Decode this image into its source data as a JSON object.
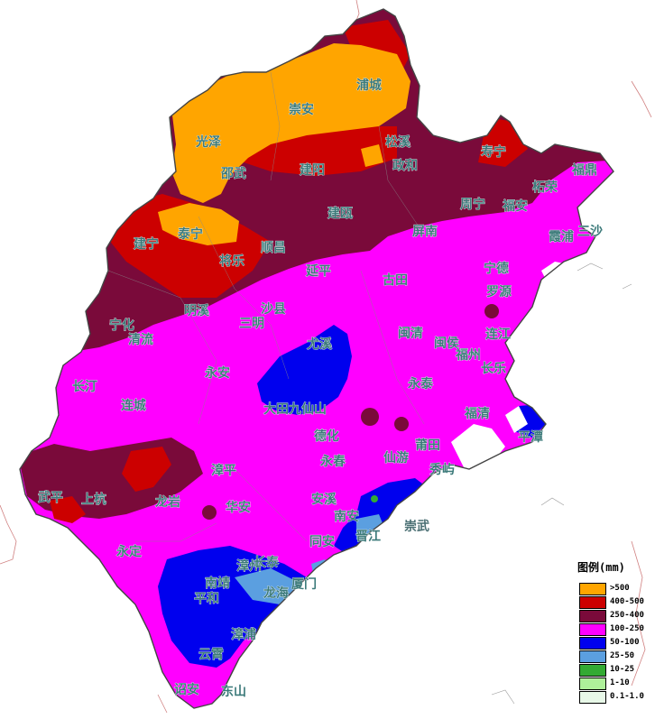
{
  "legend": {
    "title": "图例(mm)",
    "items": [
      {
        "label": ">500",
        "color": "#ffa500"
      },
      {
        "label": "400-500",
        "color": "#cc0000"
      },
      {
        "label": "250-400",
        "color": "#7a0a3a"
      },
      {
        "label": "100-250",
        "color": "#ff00ff"
      },
      {
        "label": "50-100",
        "color": "#0000ee"
      },
      {
        "label": "25-50",
        "color": "#5b9fe0"
      },
      {
        "label": "10-25",
        "color": "#33aa33"
      },
      {
        "label": "1-10",
        "color": "#aef09a"
      },
      {
        "label": "0.1-1.0",
        "color": "#e8f8e8"
      }
    ]
  },
  "places": [
    {
      "name": "浦城"
    },
    {
      "name": "崇安"
    },
    {
      "name": "光泽"
    },
    {
      "name": "松溪"
    },
    {
      "name": "邵武"
    },
    {
      "name": "建阳"
    },
    {
      "name": "政和"
    },
    {
      "name": "寿宁"
    },
    {
      "name": "福鼎"
    },
    {
      "name": "柘荣"
    },
    {
      "name": "建瓯"
    },
    {
      "name": "周宁"
    },
    {
      "name": "福安"
    },
    {
      "name": "泰宁"
    },
    {
      "name": "建宁"
    },
    {
      "name": "顺昌"
    },
    {
      "name": "将乐"
    },
    {
      "name": "屏南"
    },
    {
      "name": "霞浦"
    },
    {
      "name": "三沙"
    },
    {
      "name": "延平"
    },
    {
      "name": "古田"
    },
    {
      "name": "宁德"
    },
    {
      "name": "罗源"
    },
    {
      "name": "明溪"
    },
    {
      "name": "宁化"
    },
    {
      "name": "三明"
    },
    {
      "name": "沙县"
    },
    {
      "name": "清流"
    },
    {
      "name": "尤溪"
    },
    {
      "name": "闽清"
    },
    {
      "name": "闽侯"
    },
    {
      "name": "福州"
    },
    {
      "name": "连江"
    },
    {
      "name": "长乐"
    },
    {
      "name": "长汀"
    },
    {
      "name": "永安"
    },
    {
      "name": "永泰"
    },
    {
      "name": "连城"
    },
    {
      "name": "大田"
    },
    {
      "name": "九仙山"
    },
    {
      "name": "福清"
    },
    {
      "name": "平潭"
    },
    {
      "name": "德化"
    },
    {
      "name": "莆田"
    },
    {
      "name": "仙游"
    },
    {
      "name": "秀屿"
    },
    {
      "name": "永春"
    },
    {
      "name": "漳平"
    },
    {
      "name": "武平"
    },
    {
      "name": "上杭"
    },
    {
      "name": "龙岩"
    },
    {
      "name": "安溪"
    },
    {
      "name": "南安"
    },
    {
      "name": "崇武"
    },
    {
      "name": "华安"
    },
    {
      "name": "晋江"
    },
    {
      "name": "永定"
    },
    {
      "name": "同安"
    },
    {
      "name": "南靖"
    },
    {
      "name": "漳州"
    },
    {
      "name": "长泰"
    },
    {
      "name": "厦门"
    },
    {
      "name": "平和"
    },
    {
      "name": "龙海"
    },
    {
      "name": "漳浦"
    },
    {
      "name": "云霄"
    },
    {
      "name": "诏安"
    },
    {
      "name": "东山"
    }
  ]
}
